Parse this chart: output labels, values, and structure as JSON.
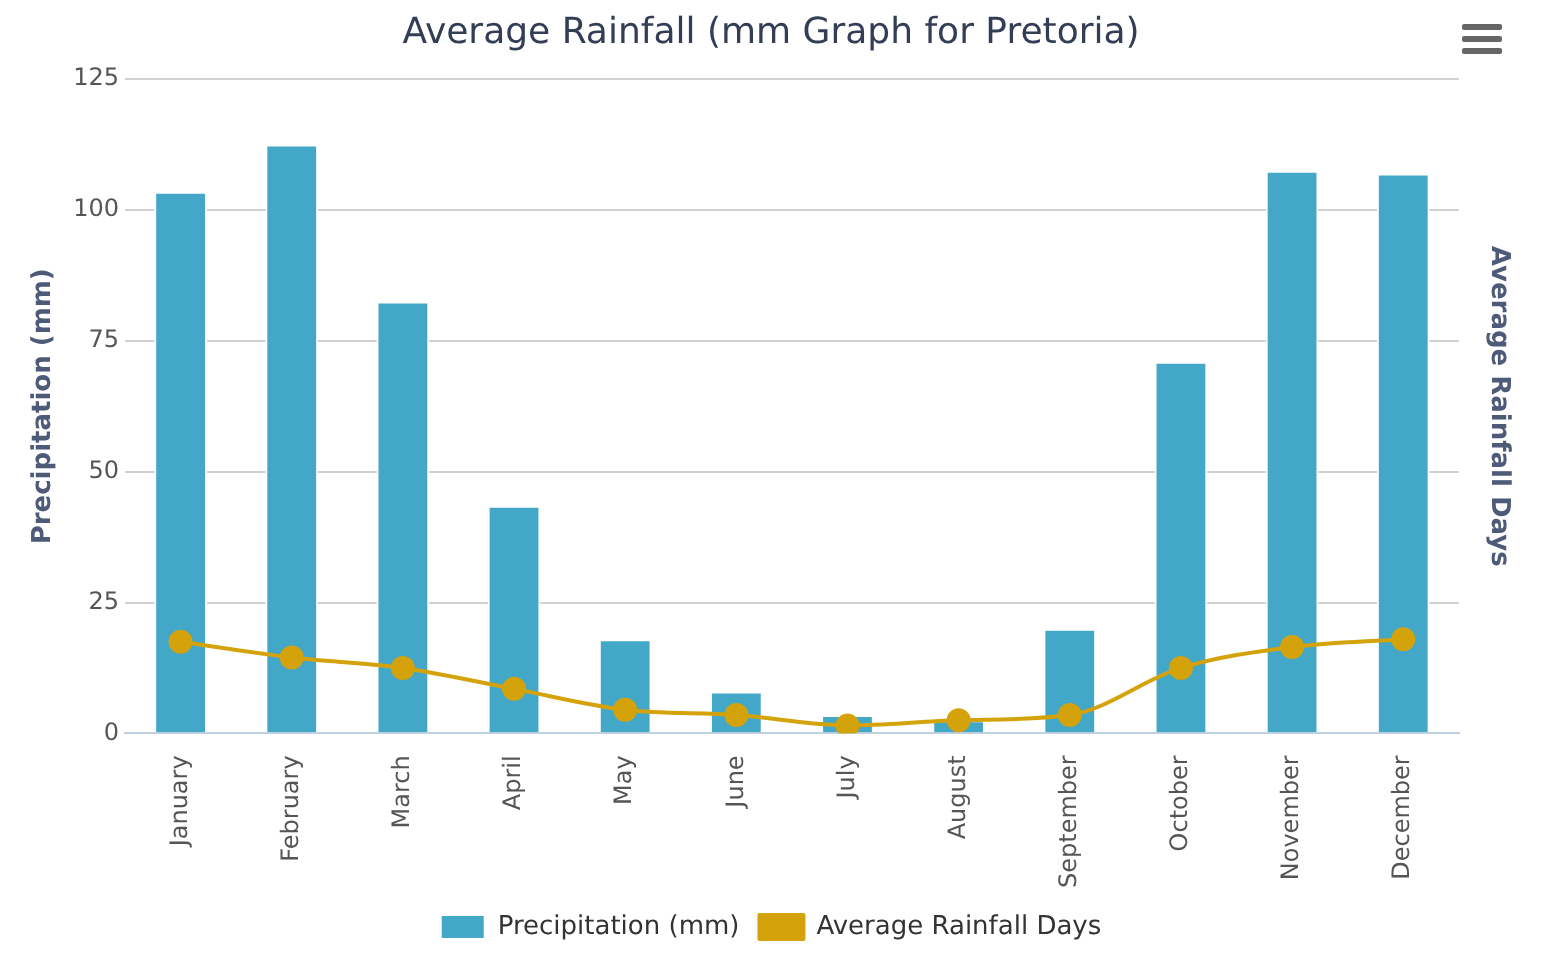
{
  "chart_data": {
    "type": "bar",
    "title": "Average Rainfall (mm Graph for Pretoria)",
    "ylabel": "Precipitation (mm)",
    "y2label": "Average Rainfall Days",
    "categories": [
      "January",
      "February",
      "March",
      "April",
      "May",
      "June",
      "July",
      "August",
      "September",
      "October",
      "November",
      "December"
    ],
    "series": [
      {
        "name": "Precipitation (mm)",
        "color": "#43a8c8",
        "values": [
          103.5,
          112.5,
          82.5,
          43.5,
          18,
          8,
          3.5,
          2.5,
          20,
          71,
          107.5,
          107
        ]
      },
      {
        "name": "Average Rainfall Days",
        "type": "line",
        "color": "#d4a20a",
        "marker": "circle",
        "values": [
          17.5,
          14.5,
          12.5,
          8.5,
          4.5,
          3.5,
          1.5,
          2.5,
          3.5,
          12.5,
          16.5,
          18
        ]
      }
    ],
    "ylim": [
      0,
      125
    ],
    "yticks": [
      0,
      25,
      50,
      75,
      100,
      125
    ],
    "grid": "y",
    "legend": "bottom"
  }
}
